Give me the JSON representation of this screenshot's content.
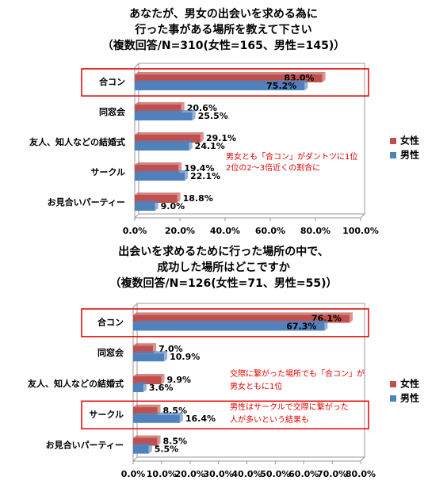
{
  "chart_data": [
    {
      "type": "bar",
      "orientation": "horizontal",
      "title": [
        "あなたが、男女の出会いを求める為に",
        "行った事がある場所を教えて下さい",
        "（複数回答/N=310(女性=165、男性=145)）"
      ],
      "categories": [
        "合コン",
        "同窓会",
        "友人、知人などの結婚式",
        "サークル",
        "お見合いパーティー"
      ],
      "series": [
        {
          "name": "女性",
          "color": "#c0504d",
          "values": [
            83.0,
            20.6,
            29.1,
            19.4,
            18.8
          ],
          "value_labels": [
            "83.0%",
            "20.6%",
            "29.1%",
            "19.4%",
            "18.8%"
          ]
        },
        {
          "name": "男性",
          "color": "#4f81bd",
          "values": [
            75.2,
            25.5,
            24.1,
            22.1,
            9.0
          ],
          "value_labels": [
            "75.2%",
            "25.5%",
            "24.1%",
            "22.1%",
            "9.0%"
          ]
        }
      ],
      "xlim": [
        0,
        100
      ],
      "xticks": [
        {
          "value": 0,
          "label": "0.0%"
        },
        {
          "value": 20,
          "label": "20.0%"
        },
        {
          "value": 40,
          "label": "40.0%"
        },
        {
          "value": 60,
          "label": "60.0%"
        },
        {
          "value": 80,
          "label": "80.0%"
        },
        {
          "value": 100,
          "label": "100.0%"
        }
      ],
      "legend": "right",
      "highlight_categories": [
        0
      ],
      "annotation_color": "#e00000",
      "annotations": [
        "男女とも「合コン」がダントツに1位",
        "2位の2～3倍近くの割合に"
      ]
    },
    {
      "type": "bar",
      "orientation": "horizontal",
      "title": [
        "出会いを求めるために行った場所の中で、",
        "成功した場所はどこですか",
        "（複数回答/N=126(女性=71、男性=55)）"
      ],
      "categories": [
        "合コン",
        "同窓会",
        "友人、知人などの結婚式",
        "サークル",
        "お見合いパーティー"
      ],
      "series": [
        {
          "name": "女性",
          "color": "#c0504d",
          "values": [
            76.1,
            7.0,
            9.9,
            8.5,
            8.5
          ],
          "value_labels": [
            "76.1%",
            "7.0%",
            "9.9%",
            "8.5%",
            "8.5%"
          ]
        },
        {
          "name": "男性",
          "color": "#4f81bd",
          "values": [
            67.3,
            10.9,
            3.6,
            16.4,
            5.5
          ],
          "value_labels": [
            "67.3%",
            "10.9%",
            "3.6%",
            "16.4%",
            "5.5%"
          ]
        }
      ],
      "xlim": [
        0,
        80
      ],
      "xticks": [
        {
          "value": 0,
          "label": "0.0%"
        },
        {
          "value": 10,
          "label": "10.0%"
        },
        {
          "value": 20,
          "label": "20.0%"
        },
        {
          "value": 30,
          "label": "30.0%"
        },
        {
          "value": 40,
          "label": "40.0%"
        },
        {
          "value": 50,
          "label": "50.0%"
        },
        {
          "value": 60,
          "label": "60.0%"
        },
        {
          "value": 70,
          "label": "70.0%"
        },
        {
          "value": 80,
          "label": "80.0%"
        }
      ],
      "legend": "right",
      "highlight_categories": [
        0,
        3
      ],
      "annotation_color": "#e00000",
      "annotations": [
        "交際に繋がった場所でも「合コン」が",
        "男女ともに1位",
        "男性はサークルで交際に繋がった",
        "人が多いという結果も"
      ]
    }
  ]
}
